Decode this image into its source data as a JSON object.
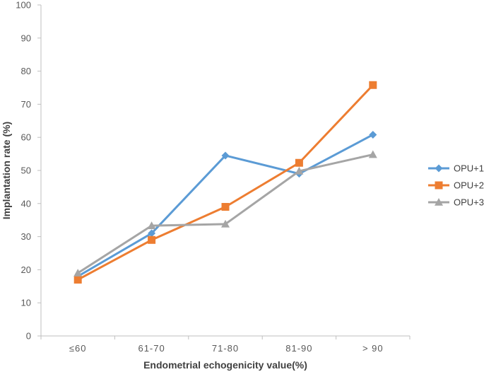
{
  "chart_data": {
    "type": "line",
    "categories": [
      "≤60",
      "61-70",
      "71-80",
      "81-90",
      "> 90"
    ],
    "series": [
      {
        "name": "OPU+1",
        "values": [
          18,
          31,
          54.5,
          49,
          60.8
        ],
        "color": "#5B9BD5",
        "marker": "diamond"
      },
      {
        "name": "OPU+2",
        "values": [
          17,
          29,
          39,
          52.3,
          75.8
        ],
        "color": "#ED7D31",
        "marker": "square"
      },
      {
        "name": "OPU+3",
        "values": [
          19,
          33.3,
          33.8,
          49.8,
          54.8
        ],
        "color": "#A5A5A5",
        "marker": "triangle"
      }
    ],
    "xlabel": "Endometrial  echogenicity value(%)",
    "ylabel": "Implantation rate (%)",
    "ylim": [
      0,
      100
    ],
    "yticks": [
      0,
      10,
      20,
      30,
      40,
      50,
      60,
      70,
      80,
      90,
      100
    ],
    "grid": false,
    "legend": "right"
  }
}
